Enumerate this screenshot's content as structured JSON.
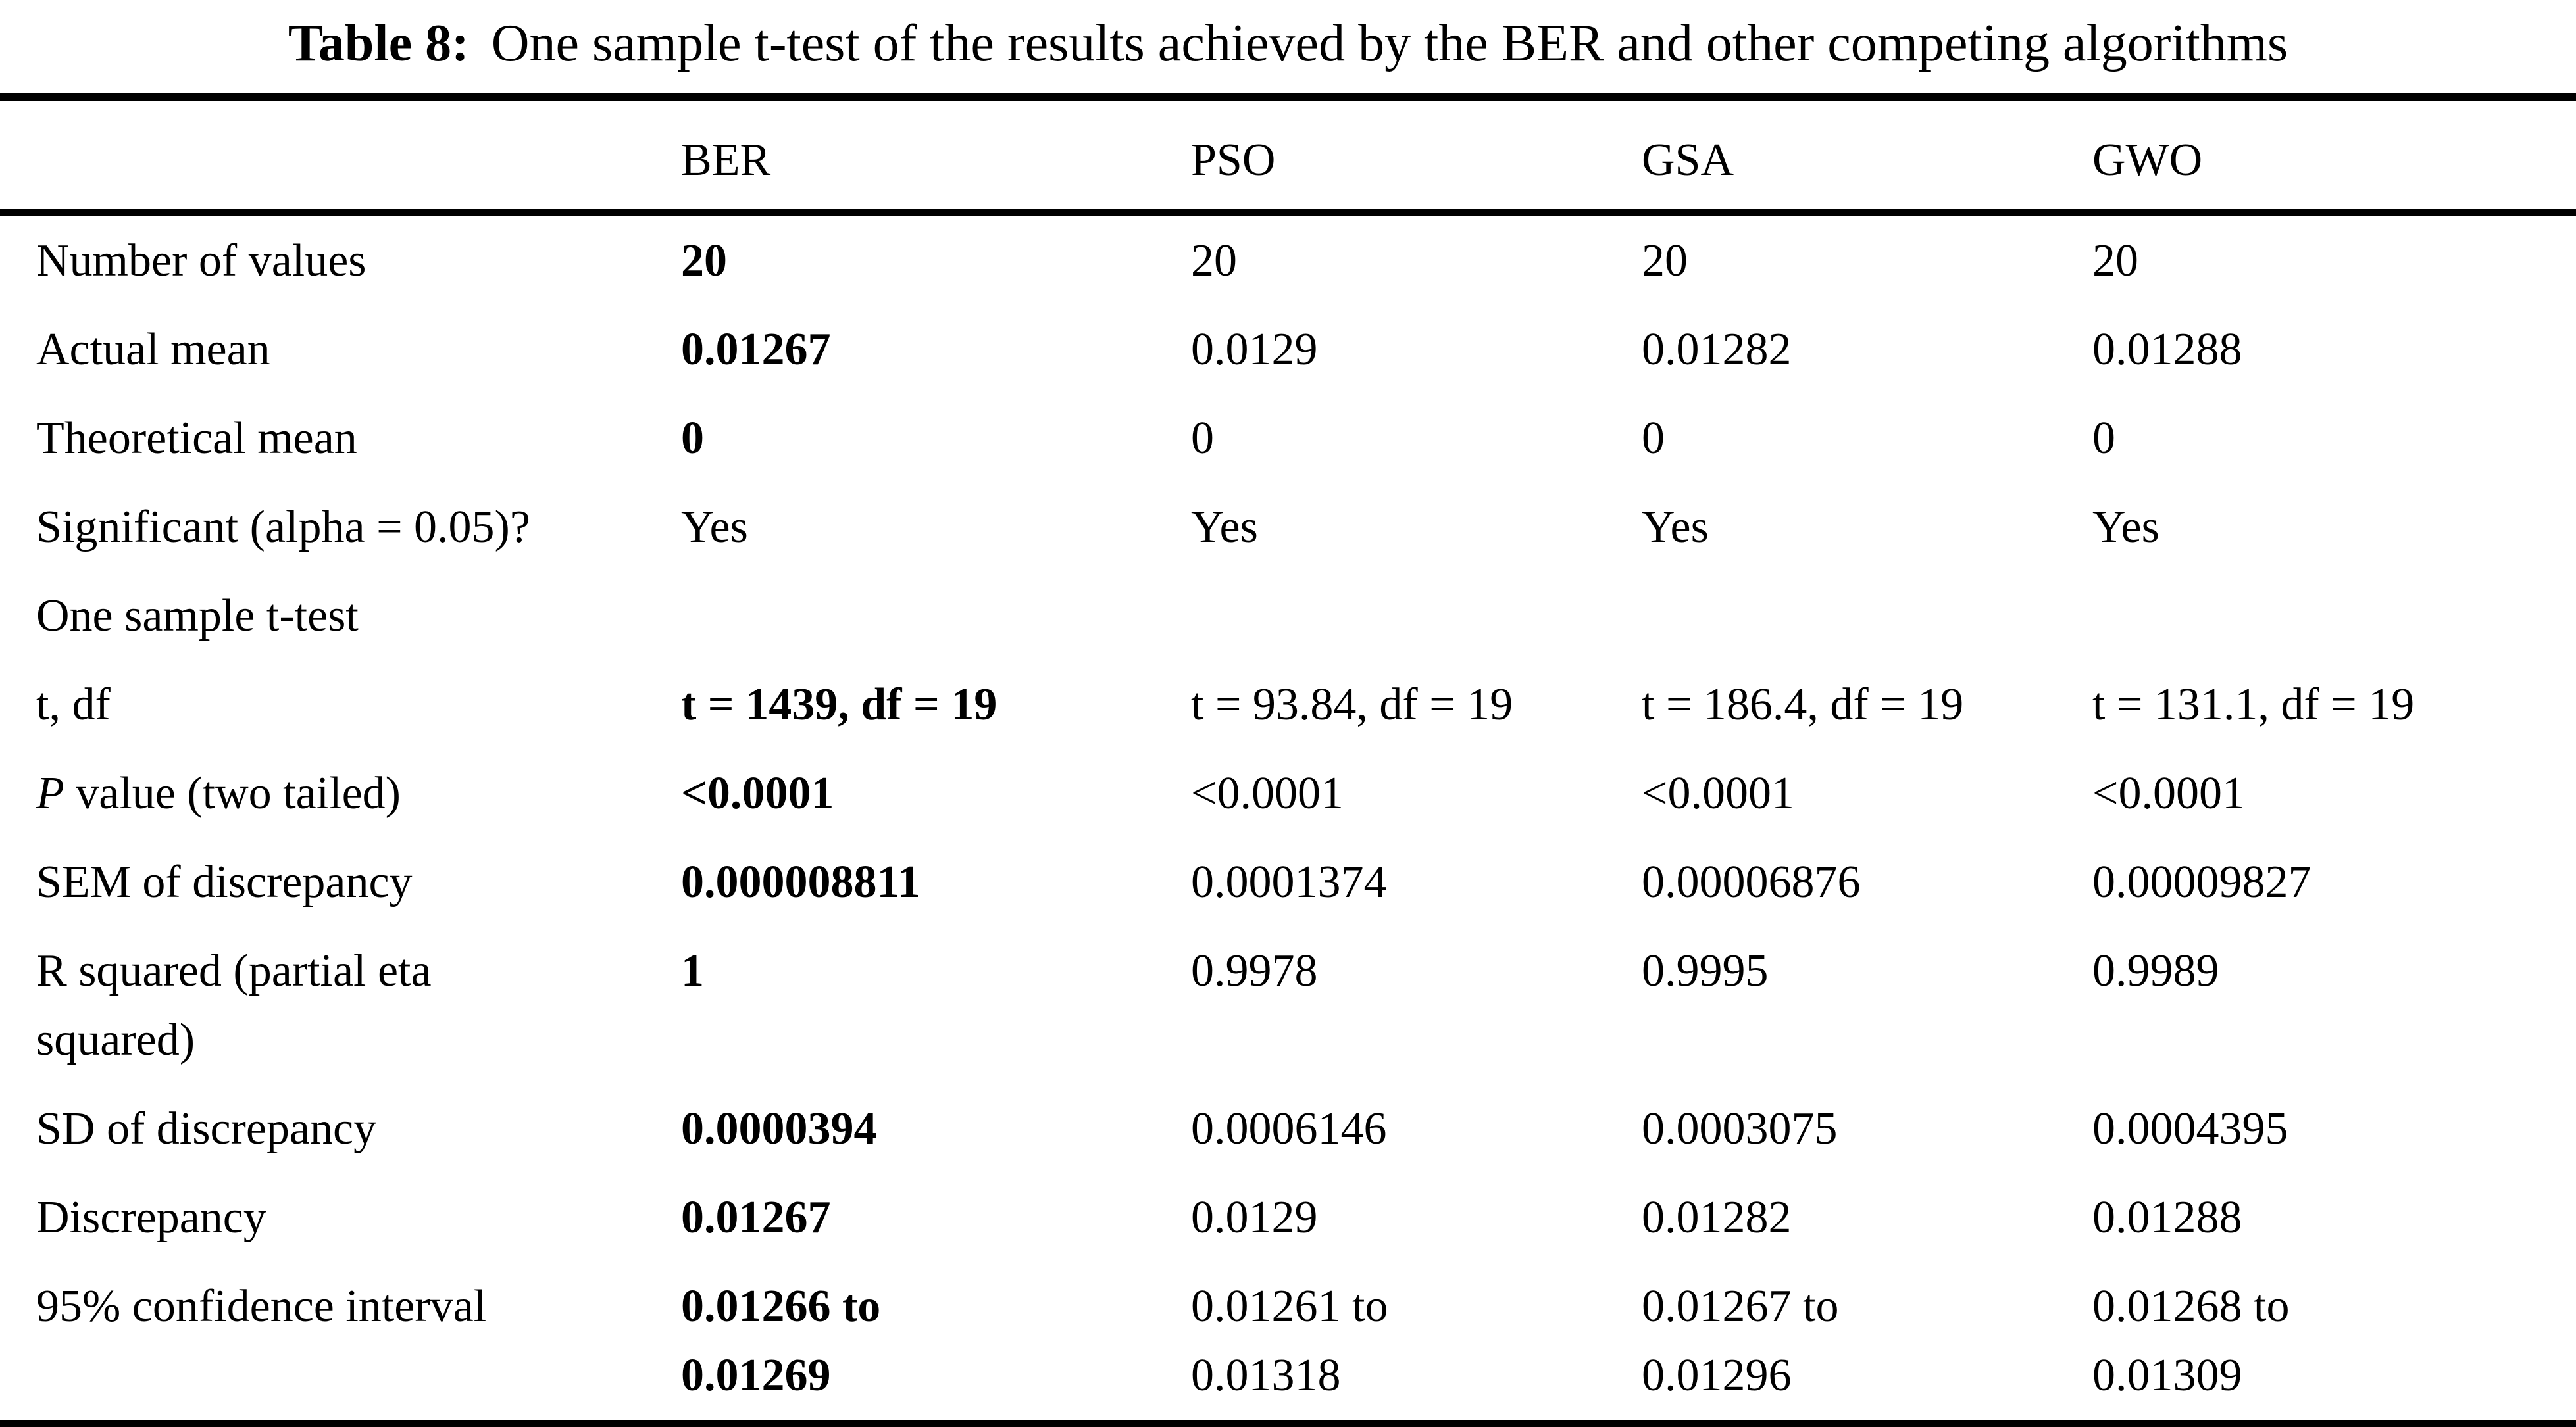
{
  "page": {
    "background": "#ffffff",
    "text_color": "#000000"
  },
  "caption": {
    "label": "Table 8:",
    "text": "One sample t-test of the results achieved by the BER and other competing algorithms"
  },
  "table": {
    "columns": [
      "",
      "BER",
      "PSO",
      "GSA",
      "GWO"
    ],
    "rows": [
      {
        "label": "Number of values",
        "italic_chars": 0,
        "ber_bold": true,
        "values": [
          "20",
          "20",
          "20",
          "20"
        ]
      },
      {
        "label": "Actual mean",
        "italic_chars": 0,
        "ber_bold": true,
        "values": [
          "0.01267",
          "0.0129",
          "0.01282",
          "0.01288"
        ]
      },
      {
        "label": "Theoretical mean",
        "italic_chars": 0,
        "ber_bold": true,
        "values": [
          "0",
          "0",
          "0",
          "0"
        ]
      },
      {
        "label": "Significant (alpha = 0.05)?",
        "italic_chars": 0,
        "ber_bold": false,
        "values": [
          "Yes",
          "Yes",
          "Yes",
          "Yes"
        ]
      },
      {
        "label": "One sample t-test",
        "italic_chars": 0,
        "ber_bold": false,
        "values": [
          "",
          "",
          "",
          ""
        ]
      },
      {
        "label": "t, df",
        "italic_chars": 0,
        "ber_bold": true,
        "values": [
          "t = 1439, df = 19",
          "t = 93.84, df = 19",
          "t = 186.4, df = 19",
          "t = 131.1, df = 19"
        ]
      },
      {
        "label": "P value (two tailed)",
        "italic_chars": 1,
        "ber_bold": true,
        "values": [
          "<0.0001",
          "<0.0001",
          "<0.0001",
          "<0.0001"
        ]
      },
      {
        "label": "SEM of discrepancy",
        "italic_chars": 0,
        "ber_bold": true,
        "values": [
          "0.000008811",
          "0.0001374",
          "0.00006876",
          "0.00009827"
        ]
      },
      {
        "label": "R squared (partial eta\nsquared)",
        "italic_chars": 0,
        "ber_bold": true,
        "values": [
          "1",
          "0.9978",
          "0.9995",
          "0.9989"
        ]
      },
      {
        "label": "SD of discrepancy",
        "italic_chars": 0,
        "ber_bold": true,
        "values": [
          "0.0000394",
          "0.0006146",
          "0.0003075",
          "0.0004395"
        ]
      },
      {
        "label": "Discrepancy",
        "italic_chars": 0,
        "ber_bold": true,
        "values": [
          "0.01267",
          "0.0129",
          "0.01282",
          "0.01288"
        ]
      },
      {
        "label": "95% confidence interval",
        "italic_chars": 0,
        "ber_bold": true,
        "values": [
          "0.01266 to\n0.01269",
          "0.01261 to\n0.01318",
          "0.01267 to\n0.01296",
          "0.01268 to\n0.01309"
        ]
      }
    ]
  }
}
